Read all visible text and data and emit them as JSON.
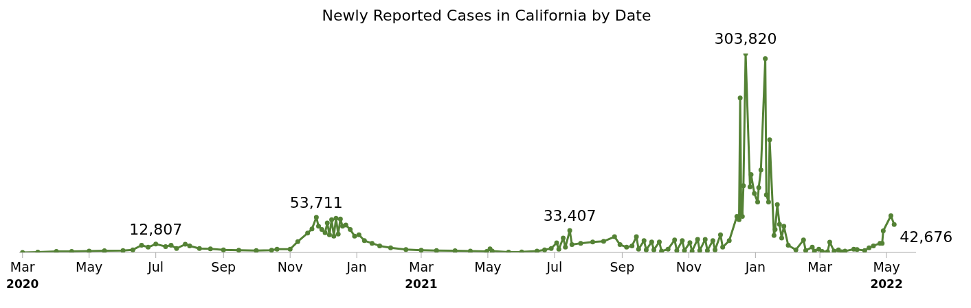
{
  "chart_data": {
    "type": "line",
    "title": "Newly Reported Cases in California by Date",
    "color": "#548235",
    "marker": "circle",
    "line_style": "solid",
    "grid": false,
    "legend": false,
    "tick_labels": "x",
    "xlim": [
      "2020-02-27",
      "2022-05-28"
    ],
    "xticks": [
      {
        "value": "2020-03-01",
        "label": "Mar\n2020"
      },
      {
        "value": "2020-05-01",
        "label": "May"
      },
      {
        "value": "2020-07-01",
        "label": "Jul"
      },
      {
        "value": "2020-09-01",
        "label": "Sep"
      },
      {
        "value": "2020-11-01",
        "label": "Nov"
      },
      {
        "value": "2021-01-01",
        "label": "Jan"
      },
      {
        "value": "2021-03-01",
        "label": "Mar\n2021"
      },
      {
        "value": "2021-05-01",
        "label": "May"
      },
      {
        "value": "2021-07-01",
        "label": "Jul"
      },
      {
        "value": "2021-09-01",
        "label": "Sep"
      },
      {
        "value": "2021-11-01",
        "label": "Nov"
      },
      {
        "value": "2022-01-01",
        "label": "Jan"
      },
      {
        "value": "2022-03-01",
        "label": "Mar"
      },
      {
        "value": "2022-05-01",
        "label": "May\n2022"
      }
    ],
    "value_labels": [
      null,
      null,
      null,
      null,
      null,
      null,
      null,
      null,
      null,
      null,
      "12,807",
      null,
      null,
      null,
      null,
      null,
      null,
      null,
      null,
      null,
      null,
      null,
      null,
      null,
      null,
      null,
      null,
      "53,711",
      null,
      null,
      null,
      null,
      null,
      null,
      null,
      null,
      null,
      null,
      null,
      null,
      null,
      null,
      null,
      null,
      null,
      null,
      null,
      null,
      null,
      null,
      null,
      null,
      null,
      null,
      null,
      null,
      null,
      null,
      null,
      null,
      null,
      null,
      null,
      null,
      "33,407",
      null,
      null,
      null,
      null,
      null,
      null,
      null,
      null,
      null,
      null,
      null,
      null,
      null,
      null,
      null,
      null,
      null,
      null,
      null,
      null,
      null,
      null,
      null,
      null,
      null,
      null,
      null,
      null,
      null,
      null,
      null,
      null,
      null,
      null,
      null,
      null,
      null,
      null,
      "303,820",
      null,
      null,
      null,
      null,
      null,
      null,
      null,
      null,
      null,
      null,
      null,
      null,
      null,
      null,
      null,
      null,
      null,
      null,
      null,
      null,
      null,
      null,
      null,
      null,
      null,
      null,
      null,
      null,
      null,
      null,
      null,
      null,
      null,
      null,
      null,
      null,
      null,
      null,
      null,
      "42,676"
    ],
    "x": [
      "2020-03-01",
      "2020-03-15",
      "2020-04-01",
      "2020-04-15",
      "2020-05-01",
      "2020-05-15",
      "2020-06-01",
      "2020-06-10",
      "2020-06-18",
      "2020-06-24",
      "2020-07-01",
      "2020-07-10",
      "2020-07-15",
      "2020-07-20",
      "2020-07-28",
      "2020-08-01",
      "2020-08-10",
      "2020-08-20",
      "2020-09-01",
      "2020-09-15",
      "2020-10-01",
      "2020-10-15",
      "2020-10-20",
      "2020-11-01",
      "2020-11-08",
      "2020-11-17",
      "2020-11-21",
      "2020-11-25",
      "2020-11-27",
      "2020-11-30",
      "2020-12-03",
      "2020-12-05",
      "2020-12-07",
      "2020-12-09",
      "2020-12-11",
      "2020-12-13",
      "2020-12-15",
      "2020-12-17",
      "2020-12-19",
      "2020-12-22",
      "2020-12-26",
      "2020-12-30",
      "2021-01-03",
      "2021-01-08",
      "2021-01-15",
      "2021-01-22",
      "2021-02-01",
      "2021-02-15",
      "2021-03-01",
      "2021-03-15",
      "2021-04-01",
      "2021-04-15",
      "2021-04-30",
      "2021-05-03",
      "2021-05-05",
      "2021-05-20",
      "2021-06-01",
      "2021-06-15",
      "2021-06-22",
      "2021-06-28",
      "2021-07-03",
      "2021-07-05",
      "2021-07-09",
      "2021-07-11",
      "2021-07-15",
      "2021-07-17",
      "2021-07-25",
      "2021-08-05",
      "2021-08-15",
      "2021-08-25",
      "2021-08-30",
      "2021-09-05",
      "2021-09-10",
      "2021-09-14",
      "2021-09-16",
      "2021-09-21",
      "2021-09-23",
      "2021-09-28",
      "2021-09-30",
      "2021-10-05",
      "2021-10-07",
      "2021-10-13",
      "2021-10-19",
      "2021-10-21",
      "2021-10-26",
      "2021-10-28",
      "2021-11-02",
      "2021-11-04",
      "2021-11-09",
      "2021-11-11",
      "2021-11-16",
      "2021-11-18",
      "2021-11-23",
      "2021-11-25",
      "2021-11-30",
      "2021-12-02",
      "2021-12-08",
      "2021-12-15",
      "2021-12-17",
      "2021-12-18",
      "2021-12-19",
      "2021-12-20",
      "2021-12-21",
      "2021-12-23",
      "2021-12-27",
      "2021-12-28",
      "2021-12-31",
      "2022-01-03",
      "2022-01-04",
      "2022-01-06",
      "2022-01-10",
      "2022-01-11",
      "2022-01-13",
      "2022-01-14",
      "2022-01-18",
      "2022-01-19",
      "2022-01-21",
      "2022-01-23",
      "2022-01-25",
      "2022-01-27",
      "2022-01-31",
      "2022-02-07",
      "2022-02-14",
      "2022-02-16",
      "2022-02-22",
      "2022-02-24",
      "2022-02-28",
      "2022-03-03",
      "2022-03-08",
      "2022-03-10",
      "2022-03-14",
      "2022-03-18",
      "2022-03-21",
      "2022-03-24",
      "2022-04-01",
      "2022-04-04",
      "2022-04-11",
      "2022-04-15",
      "2022-04-19",
      "2022-04-25",
      "2022-04-27",
      "2022-04-28",
      "2022-05-05",
      "2022-05-08"
    ],
    "values": [
      100,
      500,
      1500,
      1500,
      2000,
      2500,
      3000,
      4000,
      11000,
      8000,
      12807,
      9000,
      11000,
      6000,
      12500,
      10000,
      6000,
      5500,
      4000,
      3500,
      3000,
      3500,
      5000,
      5000,
      16600,
      29500,
      36000,
      53711,
      40000,
      35000,
      30000,
      45000,
      27000,
      50000,
      25000,
      52000,
      28000,
      51000,
      40000,
      42000,
      35000,
      25000,
      27000,
      18000,
      14000,
      10000,
      7000,
      4500,
      3500,
      3000,
      2500,
      2000,
      1500,
      5500,
      2000,
      500,
      800,
      2000,
      4000,
      6000,
      14700,
      5000,
      22000,
      8000,
      33407,
      12000,
      14000,
      16000,
      17000,
      24000,
      12000,
      8000,
      10000,
      24000,
      5000,
      18000,
      4000,
      16000,
      4000,
      16000,
      2000,
      5000,
      19000,
      3000,
      18000,
      3000,
      15000,
      2000,
      20000,
      3000,
      20000,
      3000,
      18000,
      4000,
      27000,
      8000,
      18000,
      55000,
      50000,
      236000,
      60000,
      55000,
      102000,
      303820,
      100000,
      119000,
      90000,
      77000,
      99000,
      126000,
      296000,
      88000,
      77000,
      172000,
      26000,
      35000,
      73000,
      43000,
      22000,
      40000,
      11000,
      4000,
      19000,
      3000,
      8000,
      2000,
      5000,
      1500,
      1000,
      15700,
      2000,
      4000,
      1000,
      2000,
      5000,
      4500,
      3000,
      7000,
      10000,
      14000,
      14000,
      33000,
      56000,
      42676
    ]
  }
}
